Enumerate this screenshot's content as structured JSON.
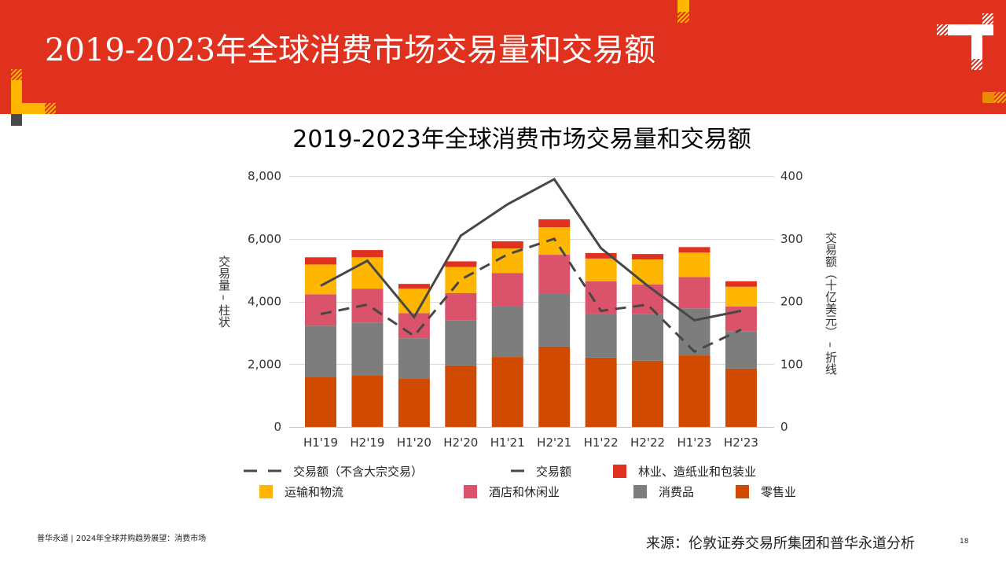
{
  "header": {
    "title": "2019-2023年全球消费市场交易量和交易额"
  },
  "colors": {
    "header_red": "#E0301E",
    "accent_yellow": "#FFB600",
    "accent_orange": "#EB8C00",
    "decor_dark": "#4A4A4A"
  },
  "chart_data": {
    "type": "bar",
    "stacked": true,
    "title": "2019-2023年全球消费市场交易量和交易额",
    "ylabel": "交易量 – 柱状",
    "y2label": "交易额（十亿美元） – 折线",
    "categories": [
      "H1'19",
      "H2'19",
      "H1'20",
      "H2'20",
      "H1'21",
      "H2'21",
      "H1'22",
      "H2'22",
      "H1'23",
      "H2'23"
    ],
    "ylim": [
      0,
      8000
    ],
    "y2lim": [
      0,
      400
    ],
    "y_ticks": [
      {
        "value": 0,
        "label": "0"
      },
      {
        "value": 2000,
        "label": "2,000"
      },
      {
        "value": 4000,
        "label": "4,000"
      },
      {
        "value": 6000,
        "label": "6,000"
      },
      {
        "value": 8000,
        "label": "8,000"
      }
    ],
    "y2_ticks": [
      {
        "value": 0,
        "label": "0"
      },
      {
        "value": 100,
        "label": "100"
      },
      {
        "value": 200,
        "label": "200"
      },
      {
        "value": 300,
        "label": "300"
      },
      {
        "value": 400,
        "label": "400"
      }
    ],
    "grid": true,
    "legend_position": "bottom",
    "series": [
      {
        "name": "零售业",
        "color": "#D04A02",
        "values": [
          1580,
          1630,
          1530,
          1960,
          2230,
          2560,
          2210,
          2110,
          2280,
          1860
        ]
      },
      {
        "name": "消费品",
        "color": "#7D7D7D",
        "values": [
          1650,
          1700,
          1300,
          1430,
          1630,
          1680,
          1400,
          1480,
          1500,
          1180
        ]
      },
      {
        "name": "酒店和休闲业",
        "color": "#DB536A",
        "values": [
          1000,
          1080,
          800,
          880,
          1050,
          1250,
          1030,
          950,
          1000,
          800
        ]
      },
      {
        "name": "运输和物流",
        "color": "#FFB600",
        "values": [
          950,
          1000,
          780,
          830,
          780,
          880,
          730,
          800,
          780,
          630
        ]
      },
      {
        "name": "林业、造纸业和包装业",
        "color": "#E0301E",
        "values": [
          230,
          230,
          150,
          180,
          230,
          250,
          175,
          175,
          175,
          175
        ]
      }
    ],
    "line_series": [
      {
        "name": "交易额（不含大宗交易）",
        "style": "dashed",
        "axis": "right",
        "color": "#474747",
        "values": [
          180,
          195,
          145,
          235,
          275,
          300,
          185,
          195,
          120,
          155
        ]
      },
      {
        "name": "交易额",
        "style": "solid",
        "axis": "right",
        "color": "#474747",
        "values": [
          225,
          265,
          175,
          305,
          355,
          395,
          285,
          225,
          170,
          185
        ]
      }
    ]
  },
  "footer": {
    "left_text": "普华永道 | 2024年全球并购趋势展望：消费市场",
    "source": "来源：伦敦证券交易所集团和普华永道分析",
    "page_number": "18"
  }
}
